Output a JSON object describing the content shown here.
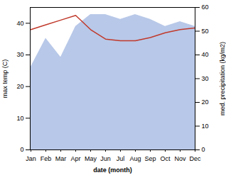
{
  "chart_data": {
    "type": "line",
    "categories": [
      "Jan",
      "Feb",
      "Mar",
      "Apr",
      "May",
      "Jun",
      "Jul",
      "Aug",
      "Sep",
      "Oct",
      "Nov",
      "Dec"
    ],
    "series": [
      {
        "type": "area",
        "axis": "y2",
        "color": "#b8c8e8",
        "values": [
          35,
          47,
          39,
          52,
          57,
          57,
          55,
          57,
          55,
          52,
          54,
          52
        ]
      },
      {
        "type": "line",
        "color": "#c0392b",
        "values": [
          38,
          39.5,
          41,
          42.5,
          38,
          35,
          34.5,
          34.5,
          35.5,
          37,
          38,
          38.5
        ]
      }
    ],
    "xlabel": "date (month)",
    "ylabel": "max temp (C)",
    "y2label": "med. precipitation (kg/m2)",
    "ylim": [
      0,
      45
    ],
    "yticks": [
      0,
      10,
      20,
      30,
      40
    ],
    "y2lim": [
      0,
      60
    ],
    "y2ticks": [
      0,
      10,
      20,
      30,
      40,
      50,
      60
    ]
  }
}
